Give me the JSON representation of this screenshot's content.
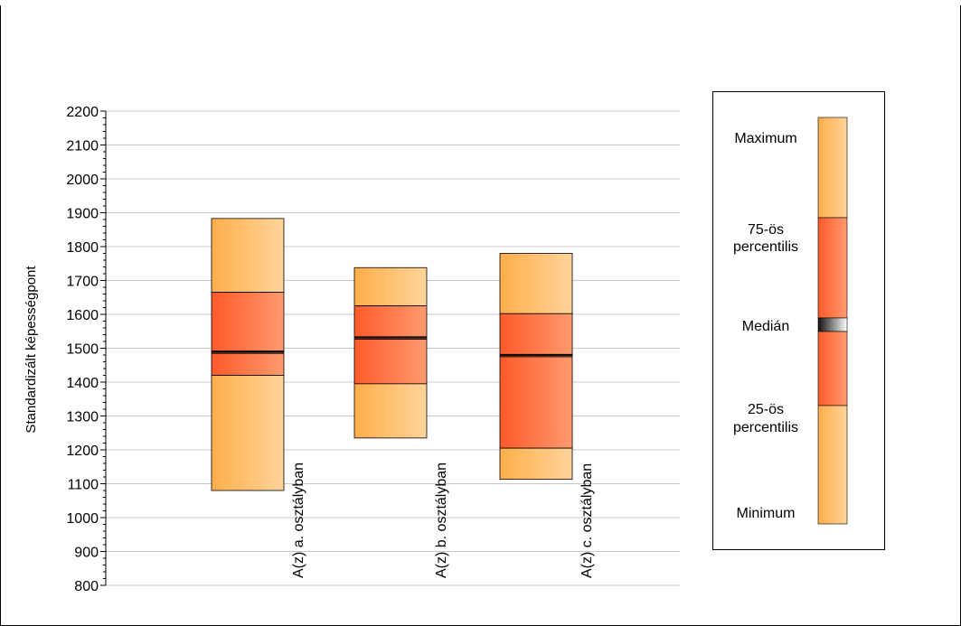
{
  "chart_data": {
    "type": "box",
    "ylabel": "Standardizált képességpont",
    "xlabel": "",
    "ylim": [
      800,
      2200
    ],
    "yticks": [
      800,
      900,
      1000,
      1100,
      1200,
      1300,
      1400,
      1500,
      1600,
      1700,
      1800,
      1900,
      2000,
      2100,
      2200
    ],
    "grid": true,
    "categories": [
      "A(z) a. osztályban",
      "A(z) b. osztályban",
      "A(z) c. osztályban"
    ],
    "series": [
      {
        "category": "A(z) a. osztályban",
        "min": 1080,
        "q1": 1420,
        "median": 1488,
        "q3": 1665,
        "max": 1883
      },
      {
        "category": "A(z) b. osztályban",
        "min": 1235,
        "q1": 1395,
        "median": 1530,
        "q3": 1625,
        "max": 1738
      },
      {
        "category": "A(z) c. osztályban",
        "min": 1113,
        "q1": 1205,
        "median": 1478,
        "q3": 1602,
        "max": 1780
      }
    ],
    "legend": {
      "position": "right",
      "labels": {
        "maximum": "Maximum",
        "q3_line1": "75-ös",
        "q3_line2": "percentilis",
        "median": "Medián",
        "q1_line1": "25-ös",
        "q1_line2": "percentilis",
        "minimum": "Minimum"
      }
    },
    "colors": {
      "outer_light": "#ffd49a",
      "outer_dark": "#ffae4a",
      "inner_light": "#ff9a6e",
      "inner_dark": "#ff5a2a",
      "grid": "#c8c8c8",
      "frame": "#000000"
    }
  }
}
